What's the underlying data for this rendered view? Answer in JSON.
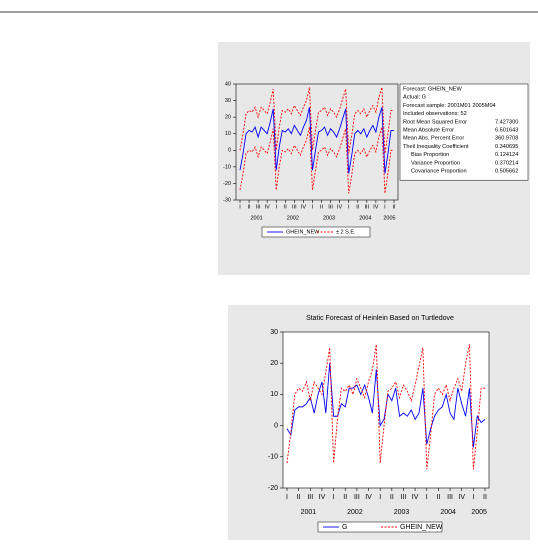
{
  "chart_data": [
    {
      "type": "line",
      "categories": [
        "I",
        null,
        null,
        "II",
        null,
        null,
        "III",
        null,
        null,
        "IV",
        null,
        null,
        "I",
        null,
        null,
        "II",
        null,
        null,
        "III",
        null,
        null,
        "IV",
        null,
        null,
        "I",
        null,
        null,
        "II",
        null,
        null,
        "III",
        null,
        null,
        "IV",
        null,
        null,
        "I",
        null,
        null,
        "II",
        null,
        null,
        "III",
        null,
        null,
        "IV",
        null,
        null,
        "I",
        null,
        null,
        "II"
      ],
      "years": [
        "2001",
        "2002",
        "2003",
        "2004",
        "2005"
      ],
      "ylim": [
        -30,
        40
      ],
      "yticks": [
        40,
        30,
        20,
        10,
        0,
        -10,
        -20,
        -30
      ],
      "series": [
        {
          "name": "GHEIN_NEW",
          "color": "#0000ff",
          "values": [
            -12,
            -2,
            10,
            12,
            11,
            14,
            8,
            14,
            12,
            10,
            17,
            25,
            -12,
            2,
            12,
            11,
            13,
            10,
            15,
            12,
            9,
            14,
            18,
            26,
            -12,
            0,
            11,
            12,
            14,
            9,
            13,
            11,
            8,
            13,
            19,
            25,
            -14,
            -3,
            10,
            12,
            10,
            13,
            8,
            12,
            15,
            11,
            20,
            26,
            -14,
            -2,
            12,
            12
          ]
        },
        {
          "name": "± 2 S.E.",
          "color": "#ff0000",
          "style": "dashed",
          "values": [
            0,
            10,
            22,
            24,
            23,
            26,
            20,
            26,
            24,
            22,
            29,
            37,
            0,
            14,
            24,
            23,
            25,
            22,
            27,
            24,
            21,
            26,
            30,
            38,
            0,
            12,
            23,
            24,
            26,
            21,
            25,
            23,
            20,
            25,
            31,
            37,
            -2,
            9,
            22,
            24,
            22,
            25,
            20,
            24,
            27,
            23,
            32,
            38,
            -2,
            10,
            24,
            24
          ],
          "lower": [
            -24,
            -14,
            -2,
            0,
            -1,
            2,
            -4,
            2,
            0,
            -2,
            5,
            13,
            -24,
            -10,
            0,
            -1,
            1,
            -2,
            3,
            0,
            -3,
            2,
            6,
            14,
            -24,
            -12,
            -1,
            0,
            2,
            -3,
            1,
            -1,
            -4,
            1,
            7,
            13,
            -26,
            -15,
            -2,
            0,
            -2,
            1,
            -4,
            0,
            3,
            -1,
            8,
            14,
            -26,
            -14,
            0,
            0
          ]
        }
      ],
      "stats_box": {
        "lines": [
          "Forecast: GHEIN_NEW",
          "Actual: G",
          "Forecast sample: 2001M01  2005M04",
          "Included observations: 52"
        ],
        "rows": [
          [
            "Root Mean Squared Error",
            "7.427300"
          ],
          [
            "Mean Absolute Error",
            "6.501643"
          ],
          [
            "Mean Abs. Percent Error",
            "360.9708"
          ],
          [
            "Theil Inequality Coefficient",
            "0.340695"
          ],
          [
            "Bias Proportion",
            "0.124124"
          ],
          [
            "Variance Proportion",
            "0.370214"
          ],
          [
            "Covariance Proportion",
            "0.505662"
          ]
        ]
      }
    },
    {
      "type": "line",
      "title": "Static Forecast of Heinlein Based on Turtledove",
      "categories": [
        "I",
        null,
        null,
        "II",
        null,
        null,
        "III",
        null,
        null,
        "IV",
        null,
        null,
        "I",
        null,
        null,
        "II",
        null,
        null,
        "III",
        null,
        null,
        "IV",
        null,
        null,
        "I",
        null,
        null,
        "II",
        null,
        null,
        "III",
        null,
        null,
        "IV",
        null,
        null,
        "I",
        null,
        null,
        "II",
        null,
        null,
        "III",
        null,
        null,
        "IV",
        null,
        null,
        "I",
        null,
        null,
        "II"
      ],
      "years": [
        "2001",
        "2002",
        "2003",
        "2004",
        "2005"
      ],
      "ylim": [
        -20,
        30
      ],
      "yticks": [
        30,
        20,
        10,
        0,
        -10,
        -20
      ],
      "series": [
        {
          "name": "G",
          "color": "#0000ff",
          "values": [
            -1,
            -3,
            5,
            6,
            6,
            7,
            9,
            4,
            10,
            14,
            4,
            20,
            3,
            3,
            7,
            6,
            12,
            12,
            13,
            10,
            13,
            9,
            4,
            18,
            0,
            2,
            10,
            8,
            12,
            3,
            4,
            3,
            5,
            2,
            4,
            12,
            -6,
            -1,
            3,
            5,
            6,
            10,
            4,
            2,
            12,
            7,
            3,
            12,
            -7,
            3,
            1,
            2
          ]
        },
        {
          "name": "GHEIN_NEW",
          "color": "#ff0000",
          "style": "dashed",
          "values": [
            -12,
            -2,
            10,
            12,
            11,
            14,
            8,
            14,
            12,
            10,
            17,
            25,
            -12,
            2,
            12,
            11,
            13,
            10,
            15,
            12,
            9,
            14,
            18,
            26,
            -12,
            0,
            11,
            12,
            14,
            9,
            13,
            11,
            8,
            13,
            19,
            25,
            -14,
            -3,
            10,
            12,
            10,
            13,
            8,
            12,
            15,
            11,
            20,
            26,
            -14,
            -2,
            12,
            12
          ]
        }
      ]
    }
  ]
}
